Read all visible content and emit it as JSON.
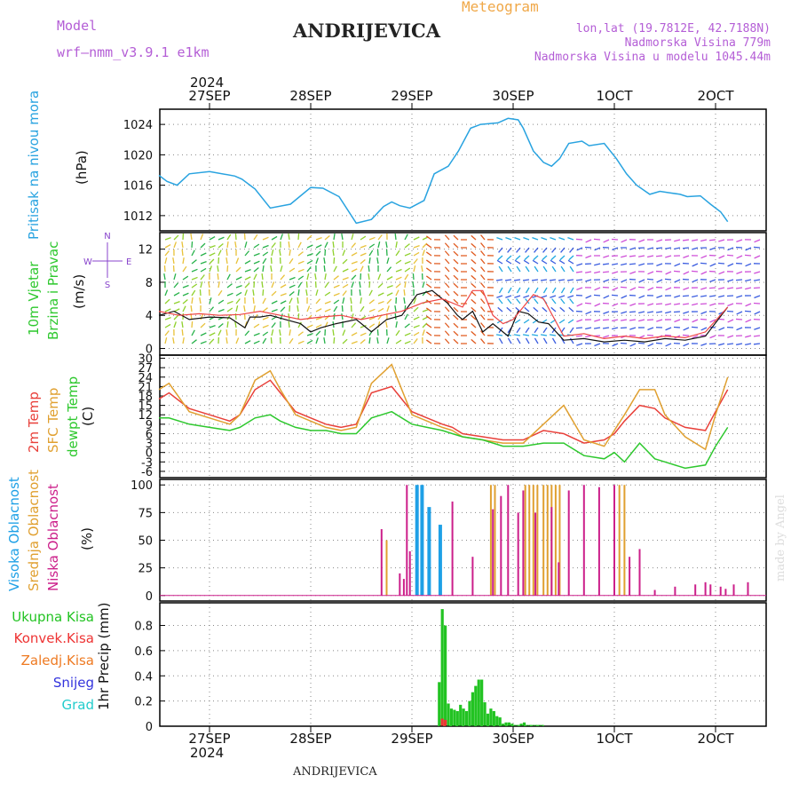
{
  "header": {
    "model_label": "Model",
    "model_name": "wrf—nmm_v3.9.1  e1km",
    "title": "ANDRIJEVICA",
    "subtitle": "Meteogram",
    "lonlat": "lon,lat (19.7812E, 42.7188N)",
    "elevation": "Nadmorska Visina 779m",
    "model_elevation": "Nadmorska Visina u modelu 1045.44m"
  },
  "footer": {
    "station": "ANDRIJEVICA",
    "credit": "made by Angel"
  },
  "colors": {
    "pressure": "#29a3e0",
    "t2m": "#e8403a",
    "tsfc": "#e0a030",
    "dew": "#2ec82e",
    "high_cloud": "#1ea0e6",
    "mid_cloud": "#e0a030",
    "low_cloud": "#cc1f8a",
    "rain": "#22c322",
    "conv": "#ee3333",
    "frz": "#ee7a22",
    "snow": "#3333dd",
    "grad": "#22cccc"
  },
  "chart_data": [
    {
      "panel": "pressure",
      "type": "line",
      "ylabel": [
        "Pritisak na nivou mora",
        "(hPa)"
      ],
      "ylim": [
        1010,
        1026
      ],
      "yticks": [
        1012,
        1016,
        1020,
        1024
      ],
      "grid": true,
      "x_dates_top": [
        "27SEP",
        "28SEP",
        "29SEP",
        "30SEP",
        "1OCT",
        "2OCT"
      ],
      "x_year": "2024",
      "series": [
        {
          "color": "#29a3e0",
          "x": [
            0,
            0.08,
            0.18,
            0.3,
            0.5,
            0.75,
            0.82,
            0.95,
            1.1,
            1.3,
            1.5,
            1.62,
            1.78,
            1.95,
            2.1,
            2.22,
            2.3,
            2.38,
            2.48,
            2.62,
            2.72,
            2.86,
            2.96,
            3.08,
            3.18,
            3.35,
            3.45,
            3.55,
            3.6,
            3.7,
            3.8,
            3.88,
            3.96,
            4.05,
            4.18,
            4.25,
            4.4,
            4.52,
            4.62,
            4.72,
            4.85,
            4.95,
            5.05,
            5.15,
            5.22,
            5.35,
            5.45,
            5.55,
            5.62
          ],
          "y": [
            1017.3,
            1016.5,
            1016.0,
            1017.5,
            1017.8,
            1017.2,
            1016.8,
            1015.5,
            1013.0,
            1013.5,
            1015.7,
            1015.6,
            1014.5,
            1011.0,
            1011.5,
            1013.2,
            1013.8,
            1013.3,
            1013.0,
            1014.0,
            1017.5,
            1018.5,
            1020.5,
            1023.5,
            1024.0,
            1024.2,
            1024.8,
            1024.6,
            1023.5,
            1020.5,
            1019.0,
            1018.5,
            1019.5,
            1021.5,
            1021.8,
            1021.2,
            1021.5,
            1019.5,
            1017.5,
            1016.0,
            1014.8,
            1015.2,
            1015.0,
            1014.8,
            1014.5,
            1014.6,
            1013.5,
            1012.5,
            1011.2
          ]
        }
      ]
    },
    {
      "panel": "wind",
      "type": "line",
      "ylabel": [
        "10m Vjetar",
        "Brzina i Pravac",
        "(m/s)"
      ],
      "compass": [
        "N",
        "W",
        "E",
        "S"
      ],
      "ylim": [
        -0.8,
        14
      ],
      "yticks": [
        0,
        4,
        8,
        12
      ],
      "series": [
        {
          "name": "speed",
          "color": "#111111",
          "x": [
            0,
            0.15,
            0.3,
            0.5,
            0.7,
            0.85,
            0.9,
            1.0,
            1.1,
            1.25,
            1.4,
            1.5,
            1.6,
            1.75,
            1.95,
            2.1,
            2.25,
            2.4,
            2.55,
            2.7,
            2.85,
            2.95,
            3.0,
            3.1,
            3.2,
            3.3,
            3.45,
            3.55,
            3.65,
            3.75,
            3.85,
            4.0,
            4.2,
            4.4,
            4.6,
            4.8,
            5.0,
            5.2,
            5.4,
            5.62
          ],
          "y": [
            4.0,
            4.5,
            3.5,
            3.8,
            3.7,
            2.5,
            3.8,
            3.8,
            4.0,
            3.5,
            3.0,
            2.0,
            2.5,
            3.0,
            3.5,
            2.0,
            3.5,
            4.0,
            6.5,
            7.0,
            5.5,
            4.0,
            3.5,
            4.5,
            2.0,
            3.0,
            1.5,
            4.5,
            4.2,
            3.2,
            3.0,
            1.0,
            1.2,
            0.8,
            1.0,
            0.8,
            1.2,
            1.0,
            1.5,
            5.0
          ]
        },
        {
          "name": "gust",
          "color": "#ee4444",
          "x": [
            0,
            0.2,
            0.4,
            0.6,
            0.8,
            1.0,
            1.2,
            1.4,
            1.6,
            1.8,
            2.0,
            2.2,
            2.4,
            2.6,
            2.8,
            3.0,
            3.1,
            3.2,
            3.3,
            3.4,
            3.5,
            3.6,
            3.7,
            3.8,
            4.0,
            4.2,
            4.4,
            4.6,
            4.8,
            5.0,
            5.2,
            5.4,
            5.62
          ],
          "y": [
            4.5,
            4.0,
            4.2,
            4.0,
            4.1,
            4.5,
            4.0,
            3.5,
            3.8,
            4.0,
            3.5,
            4.0,
            4.5,
            5.5,
            6.0,
            5.0,
            7.0,
            7.0,
            4.0,
            3.0,
            3.5,
            5.0,
            6.5,
            6.0,
            1.5,
            1.8,
            1.2,
            1.5,
            1.2,
            1.5,
            1.3,
            2.0,
            5.0
          ]
        }
      ]
    },
    {
      "panel": "temperature",
      "type": "line",
      "ylabel": [
        "2m Temp",
        "SFC Temp",
        "dewpt Temp",
        "(C)"
      ],
      "ylim": [
        -8,
        31
      ],
      "yticks": [
        30,
        27,
        24,
        21,
        18,
        15,
        12,
        9,
        6,
        3,
        0,
        -3,
        -6
      ],
      "series": [
        {
          "name": "2m Temp",
          "color": "#e8403a",
          "x": [
            0,
            0.1,
            0.3,
            0.5,
            0.7,
            0.8,
            0.95,
            1.1,
            1.2,
            1.35,
            1.5,
            1.65,
            1.8,
            1.95,
            2.1,
            2.3,
            2.5,
            2.65,
            2.8,
            2.9,
            3.0,
            3.2,
            3.4,
            3.6,
            3.8,
            4.0,
            4.2,
            4.4,
            4.5,
            4.6,
            4.75,
            4.9,
            5.0,
            5.2,
            5.4,
            5.5,
            5.62
          ],
          "y": [
            17,
            19,
            14,
            12,
            10,
            12,
            20,
            23,
            19,
            13,
            11,
            9,
            8,
            9,
            19,
            21,
            13,
            11,
            9,
            8,
            6,
            5,
            4,
            4,
            7,
            6,
            3,
            4,
            6,
            10,
            15,
            14,
            11,
            8,
            7,
            13,
            20
          ]
        },
        {
          "name": "SFC Temp",
          "color": "#e0a030",
          "x": [
            0,
            0.1,
            0.3,
            0.5,
            0.7,
            0.8,
            0.95,
            1.1,
            1.2,
            1.35,
            1.5,
            1.65,
            1.8,
            1.95,
            2.1,
            2.3,
            2.5,
            2.65,
            2.8,
            2.9,
            3.0,
            3.2,
            3.4,
            3.6,
            3.8,
            4.0,
            4.2,
            4.4,
            4.5,
            4.6,
            4.75,
            4.9,
            5.0,
            5.2,
            5.4,
            5.5,
            5.62
          ],
          "y": [
            20,
            22,
            13,
            11,
            9,
            12,
            23,
            26,
            20,
            12,
            10,
            8,
            7,
            8,
            22,
            28,
            12,
            10,
            8,
            7,
            5,
            4,
            3,
            3,
            9,
            15,
            4,
            2,
            7,
            12,
            20,
            20,
            12,
            5,
            1,
            12,
            24
          ]
        },
        {
          "name": "dewpt Temp",
          "color": "#2ec82e",
          "x": [
            0,
            0.1,
            0.3,
            0.5,
            0.7,
            0.8,
            0.95,
            1.1,
            1.2,
            1.35,
            1.5,
            1.65,
            1.8,
            1.95,
            2.1,
            2.3,
            2.5,
            2.65,
            2.8,
            2.9,
            3.0,
            3.2,
            3.4,
            3.6,
            3.8,
            4.0,
            4.2,
            4.4,
            4.5,
            4.6,
            4.75,
            4.9,
            5.0,
            5.2,
            5.4,
            5.5,
            5.62
          ],
          "y": [
            11,
            11,
            9,
            8,
            7,
            8,
            11,
            12,
            10,
            8,
            7,
            7,
            6,
            6,
            11,
            13,
            9,
            8,
            7,
            6,
            5,
            4,
            2,
            2,
            3,
            3,
            -1,
            -2,
            0,
            -3,
            3,
            -2,
            -3,
            -5,
            -4,
            2,
            8
          ]
        }
      ]
    },
    {
      "panel": "clouds",
      "type": "bar",
      "ylabel": [
        "Visoka Oblacnost",
        "Srednja Oblacnost",
        "Niska Oblacnost",
        "(%)"
      ],
      "ylim": [
        -5,
        105
      ],
      "yticks": [
        0,
        25,
        50,
        75,
        100
      ],
      "series": [
        {
          "name": "Visoka Oblacnost",
          "color": "#1ea0e6",
          "x": [
            2.55,
            2.6,
            2.67,
            2.78
          ],
          "y": [
            100,
            100,
            80,
            64
          ]
        },
        {
          "name": "Srednja Oblacnost",
          "color": "#e0a030",
          "x": [
            2.25,
            3.28,
            3.32,
            3.62,
            3.66,
            3.7,
            3.74,
            3.8,
            3.84,
            3.88,
            3.92,
            3.96,
            4.55,
            4.6
          ],
          "y": [
            50,
            100,
            100,
            100,
            100,
            100,
            100,
            100,
            100,
            100,
            100,
            100,
            100,
            100
          ]
        },
        {
          "name": "Niska Oblacnost",
          "color": "#cc1f8a",
          "x": [
            2.2,
            2.38,
            2.42,
            2.45,
            2.48,
            2.9,
            3.1,
            3.3,
            3.38,
            3.45,
            3.55,
            3.6,
            3.72,
            3.88,
            3.95,
            4.05,
            4.2,
            4.35,
            4.5,
            4.65,
            4.75,
            4.9,
            5.1,
            5.3,
            5.4,
            5.45,
            5.55,
            5.6,
            5.68,
            5.82
          ],
          "y": [
            60,
            20,
            15,
            100,
            40,
            85,
            35,
            78,
            90,
            100,
            75,
            95,
            75,
            80,
            30,
            95,
            100,
            98,
            100,
            35,
            42,
            5,
            8,
            10,
            12,
            10,
            8,
            6,
            10,
            12
          ]
        }
      ]
    },
    {
      "panel": "precipitation",
      "type": "bar",
      "ylabel": [
        "1hr Precip (mm)"
      ],
      "legend": [
        "Ukupna Kisa",
        "Konvek.Kisa",
        "Zaledj.Kisa",
        "Snijeg",
        "Grad"
      ],
      "ylim": [
        0,
        0.98
      ],
      "yticks": [
        0,
        0.2,
        0.4,
        0.6,
        0.8
      ],
      "x_dates_bottom": [
        "27SEP",
        "28SEP",
        "29SEP",
        "30SEP",
        "1OCT",
        "2OCT"
      ],
      "x_year": "2024",
      "series": [
        {
          "name": "Ukupna Kisa",
          "color": "#22c322",
          "x": [
            2.77,
            2.8,
            2.83,
            2.86,
            2.89,
            2.92,
            2.95,
            2.98,
            3.01,
            3.04,
            3.07,
            3.1,
            3.13,
            3.16,
            3.19,
            3.22,
            3.25,
            3.28,
            3.31,
            3.34,
            3.37,
            3.4,
            3.43,
            3.46,
            3.49,
            3.52,
            3.55,
            3.58,
            3.61,
            3.64,
            3.67,
            3.7,
            3.73,
            3.76,
            3.79
          ],
          "y": [
            0.35,
            0.93,
            0.8,
            0.18,
            0.14,
            0.13,
            0.12,
            0.17,
            0.14,
            0.12,
            0.2,
            0.27,
            0.32,
            0.37,
            0.37,
            0.19,
            0.1,
            0.14,
            0.12,
            0.08,
            0.07,
            0.02,
            0.03,
            0.03,
            0.02,
            0.01,
            0.01,
            0.02,
            0.03,
            0.01,
            0.01,
            0.01,
            0.01,
            0.01,
            0.01
          ]
        },
        {
          "name": "Konvek.Kisa",
          "color": "#ee3333",
          "x": [
            2.8,
            2.83
          ],
          "y": [
            0.06,
            0.05
          ]
        }
      ]
    }
  ]
}
